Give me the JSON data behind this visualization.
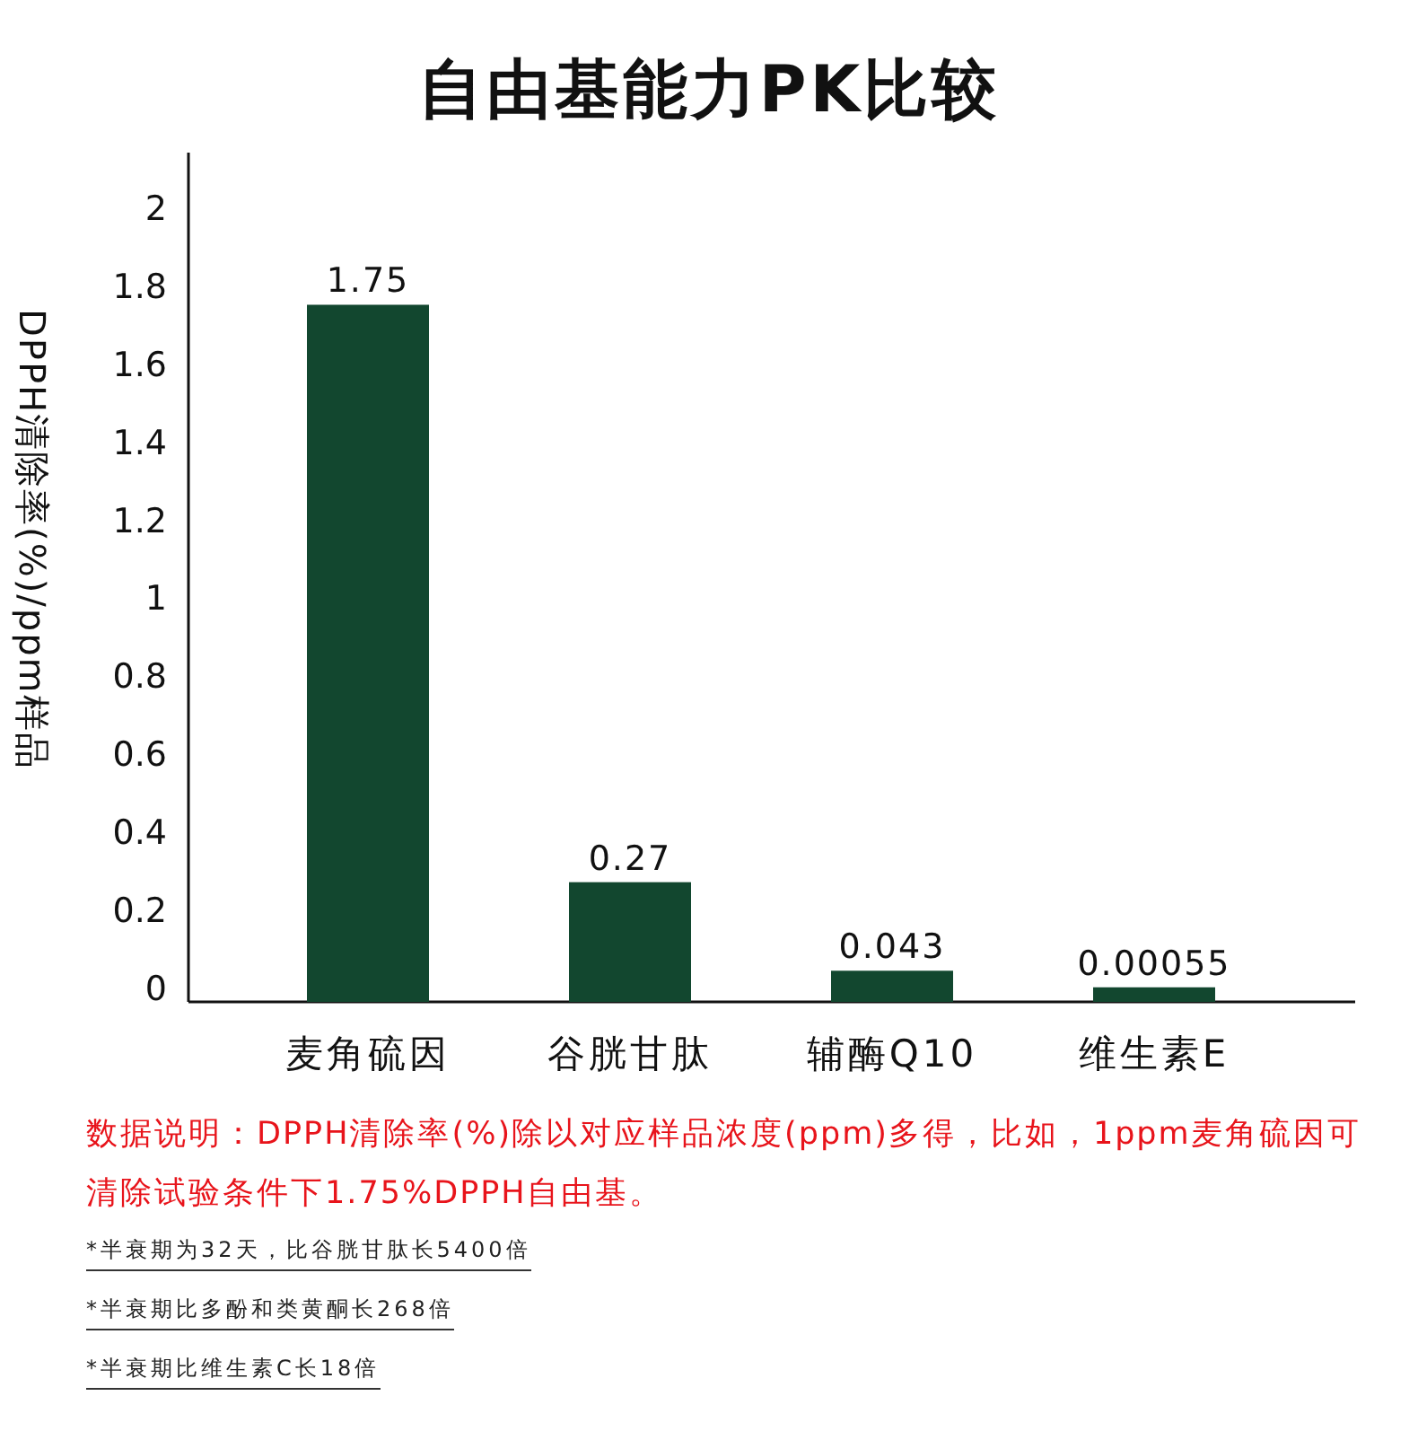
{
  "chart_data": {
    "type": "bar",
    "title": "自由基能力PK比较",
    "ylabel": "DPPH清除率(%)/ppm样品",
    "categories": [
      "麦角硫因",
      "谷胱甘肽",
      "辅酶Q10",
      "维生素E"
    ],
    "values": [
      1.75,
      0.27,
      0.043,
      0.00055
    ],
    "color": "#12472f",
    "ylim": [
      0,
      2.14
    ],
    "yticks": [
      0,
      0.2,
      0.4,
      0.6,
      0.8,
      1,
      1.2,
      1.4,
      1.6,
      1.8,
      2
    ],
    "data_labels": true,
    "grid": false,
    "annotations": [
      "数据说明：DPPH清除率(%)除以对应样品浓度(ppm)多得，比如，1ppm麦角硫因可清除试验条件下1.75%DPPH自由基。",
      "*半衰期为32天，比谷胱甘肽长5400倍",
      "*半衰期比多酚和类黄酮长268倍",
      "*半衰期比维生素C长18倍"
    ]
  }
}
